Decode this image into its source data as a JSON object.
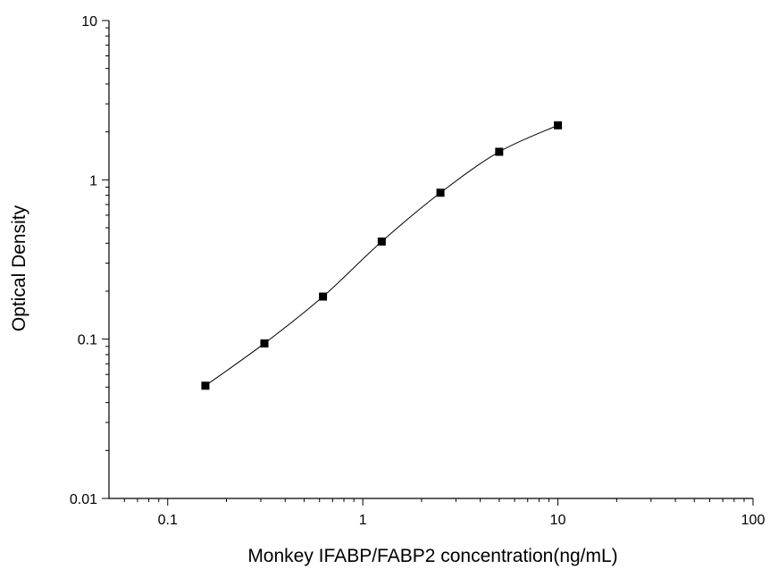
{
  "chart_data": {
    "type": "scatter",
    "title": "",
    "xlabel": "Monkey IFABP/FABP2 concentration(ng/mL)",
    "ylabel": "Optical Density",
    "xscale": "log",
    "yscale": "log",
    "xlim": [
      0.05,
      100
    ],
    "ylim": [
      0.01,
      10
    ],
    "x_ticks": [
      0.1,
      1,
      10,
      100
    ],
    "x_tick_labels": [
      "0.1",
      "1",
      "10",
      "100"
    ],
    "y_ticks": [
      0.01,
      0.1,
      1,
      10
    ],
    "y_tick_labels": [
      "0.01",
      "0.1",
      "1",
      "10"
    ],
    "grid": false,
    "legend": "none",
    "series": [
      {
        "x": [
          0.156,
          0.313,
          0.625,
          1.25,
          2.5,
          5,
          10
        ],
        "y": [
          0.051,
          0.094,
          0.185,
          0.41,
          0.83,
          1.5,
          2.2
        ],
        "marker": "square",
        "color": "#000000",
        "fit_curve": true
      }
    ]
  }
}
